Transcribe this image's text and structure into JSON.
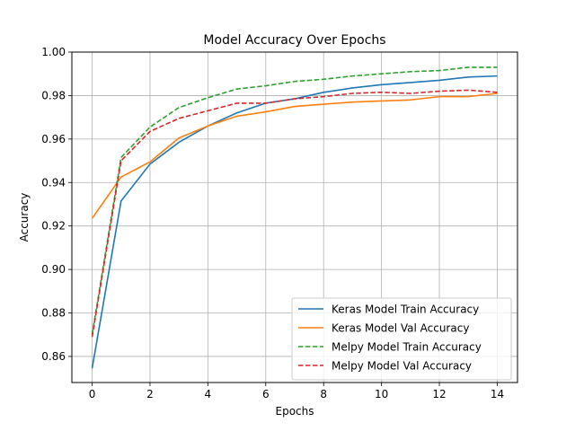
{
  "chart_data": {
    "type": "line",
    "title": "Model Accuracy Over Epochs",
    "xlabel": "Epochs",
    "ylabel": "Accuracy",
    "xlim": [
      -0.7,
      14.7
    ],
    "ylim": [
      0.848,
      1.0
    ],
    "xticks": [
      0,
      2,
      4,
      6,
      8,
      10,
      12,
      14
    ],
    "xtick_labels": [
      "0",
      "2",
      "4",
      "6",
      "8",
      "10",
      "12",
      "14"
    ],
    "yticks": [
      0.86,
      0.88,
      0.9,
      0.92,
      0.94,
      0.96,
      0.98,
      1.0
    ],
    "ytick_labels": [
      "0.86",
      "0.88",
      "0.90",
      "0.92",
      "0.94",
      "0.96",
      "0.98",
      "1.00"
    ],
    "grid": true,
    "legend_position": "bottom-right",
    "x": [
      0,
      1,
      2,
      3,
      4,
      5,
      6,
      7,
      8,
      9,
      10,
      11,
      12,
      13,
      14
    ],
    "series": [
      {
        "name": "Keras Model Train Accuracy",
        "color": "#1f77b4",
        "style": "solid",
        "values": [
          0.8545,
          0.9315,
          0.9485,
          0.9585,
          0.966,
          0.972,
          0.9765,
          0.9785,
          0.9815,
          0.9835,
          0.985,
          0.986,
          0.987,
          0.9885,
          0.989
        ]
      },
      {
        "name": "Keras Model Val Accuracy",
        "color": "#ff7f0e",
        "style": "solid",
        "values": [
          0.9235,
          0.9425,
          0.9495,
          0.9605,
          0.966,
          0.9705,
          0.9725,
          0.975,
          0.976,
          0.977,
          0.9775,
          0.978,
          0.9795,
          0.9795,
          0.981
        ]
      },
      {
        "name": "Melpy Model Train Accuracy",
        "color": "#2ca02c",
        "style": "dashed",
        "values": [
          0.87,
          0.9515,
          0.9655,
          0.9745,
          0.979,
          0.983,
          0.9845,
          0.9865,
          0.9875,
          0.989,
          0.99,
          0.991,
          0.9915,
          0.993,
          0.993
        ]
      },
      {
        "name": "Melpy Model Val Accuracy",
        "color": "#d62728",
        "style": "dashed",
        "values": [
          0.869,
          0.95,
          0.9635,
          0.9695,
          0.973,
          0.9765,
          0.9765,
          0.9785,
          0.9795,
          0.981,
          0.9815,
          0.981,
          0.982,
          0.9825,
          0.9815
        ]
      }
    ]
  }
}
